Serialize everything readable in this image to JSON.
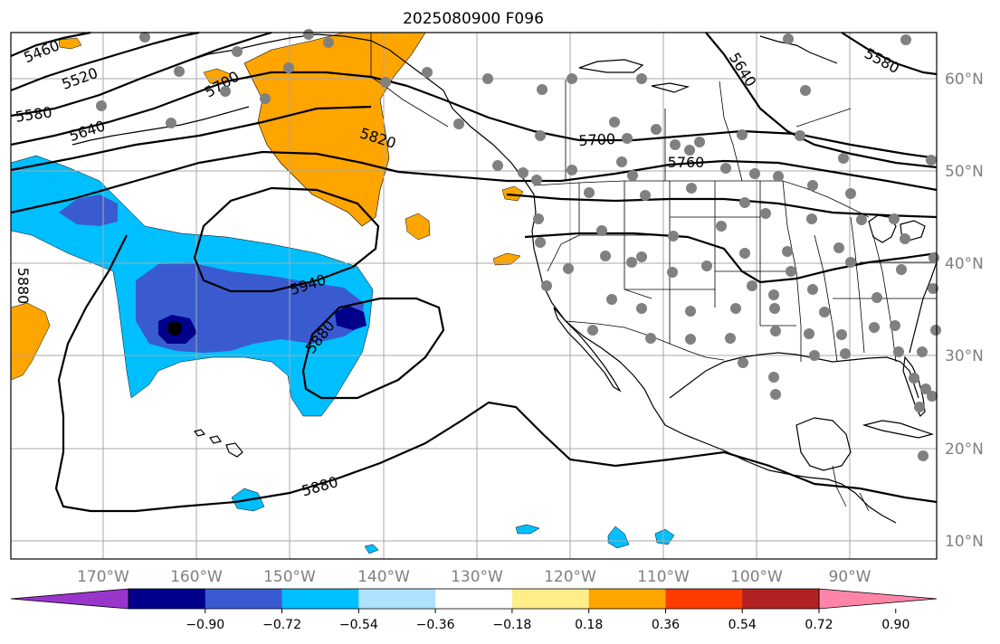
{
  "title": "2025080900 F096",
  "longitude_ticks": [
    "170°W",
    "160°W",
    "150°W",
    "140°W",
    "130°W",
    "120°W",
    "110°W",
    "100°W",
    "90°W"
  ],
  "latitude_ticks": [
    "60°N",
    "50°N",
    "40°N",
    "30°N",
    "20°N",
    "10°N"
  ],
  "contour_labels": [
    "5460",
    "5520",
    "5580",
    "5640",
    "5700",
    "5820",
    "5940",
    "5880",
    "5880",
    "5880",
    "5700",
    "5760",
    "5640",
    "5580"
  ],
  "colorbar": {
    "ticks": [
      "−0.90",
      "−0.72",
      "−0.54",
      "−0.36",
      "−0.18",
      "0.18",
      "0.36",
      "0.54",
      "0.72",
      "0.90"
    ],
    "colors": [
      "#9a35cc",
      "#00008b",
      "#3a5bd0",
      "#00bfff",
      "#aee2ff",
      "#ffffff",
      "#ffed8a",
      "#ffa500",
      "#ff3b00",
      "#b22222",
      "#ff85a8"
    ]
  },
  "colors": {
    "strong_negative": "#00008b",
    "mid_negative": "#3a5bd0",
    "weak_negative": "#00bfff",
    "weak_positive": "#ffa500",
    "station_dot": "#808080",
    "max_dot": "#000000"
  }
}
